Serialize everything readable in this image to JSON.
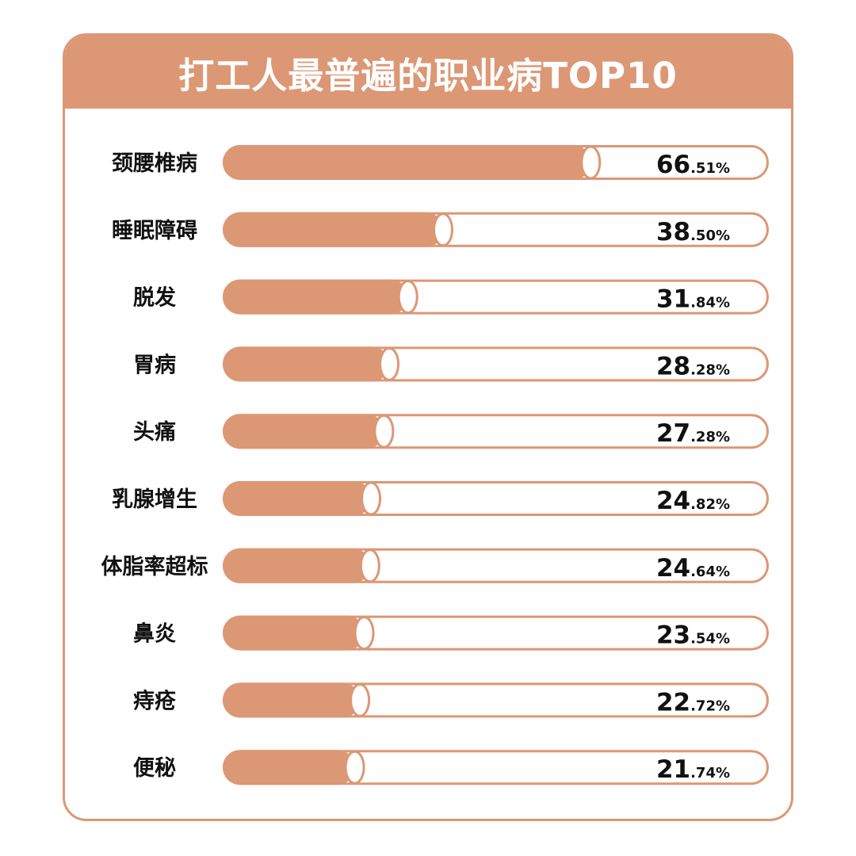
{
  "title": "打工人最普遍的职业病TOP10",
  "colors": {
    "accent": "#dc9775",
    "track_fill": "#ffffff",
    "text": "#111111"
  },
  "chart_data": {
    "type": "bar",
    "orientation": "horizontal",
    "title": "打工人最普遍的职业病TOP10",
    "unit": "%",
    "xlim": [
      0,
      100
    ],
    "categories": [
      "颈腰椎病",
      "睡眠障碍",
      "脱发",
      "胃病",
      "头痛",
      "乳腺增生",
      "体脂率超标",
      "鼻炎",
      "痔疮",
      "便秘"
    ],
    "values": [
      66.51,
      38.5,
      31.84,
      28.28,
      27.28,
      24.82,
      24.64,
      23.54,
      22.72,
      21.74
    ],
    "value_labels_int": [
      "66",
      "38",
      "31",
      "28",
      "27",
      "24",
      "24",
      "23",
      "22",
      "21"
    ],
    "value_labels_frac": [
      ".51%",
      ".50%",
      ".84%",
      ".28%",
      ".28%",
      ".82%",
      ".64%",
      ".54%",
      ".72%",
      ".74%"
    ],
    "grid": false,
    "legend": "none"
  }
}
